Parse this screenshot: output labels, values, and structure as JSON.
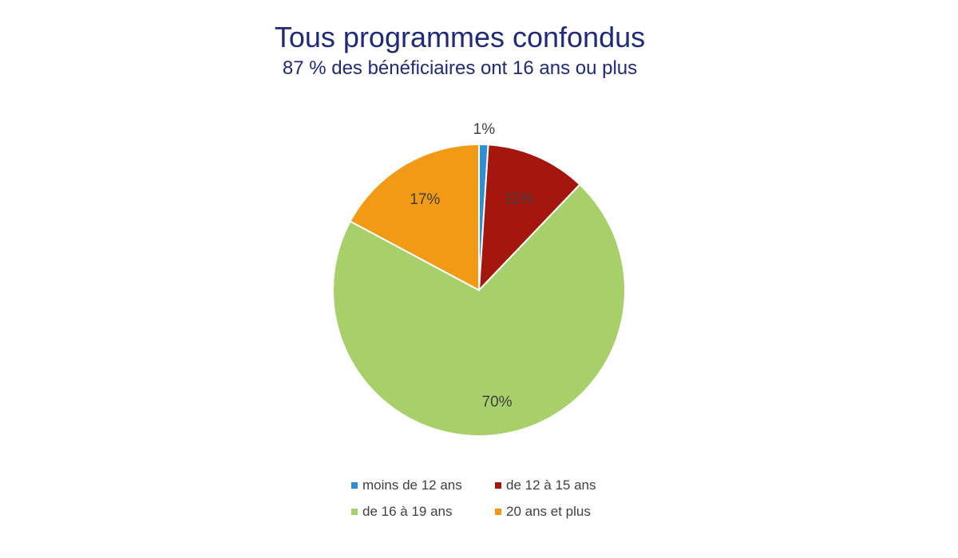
{
  "chart_data": {
    "type": "pie",
    "title": "Tous programmes confondus",
    "subtitle": "87 % des bénéficiaires ont 16 ans ou plus",
    "categories": [
      "moins de 12 ans",
      "de 12 à 15 ans",
      "de 16 à 19 ans",
      "20 ans et plus"
    ],
    "values": [
      1,
      11,
      70,
      17
    ],
    "labels": [
      "1%",
      "11%",
      "70%",
      "17%"
    ],
    "colors": [
      "#2e8fd4",
      "#a5160f",
      "#a8d06a",
      "#f29a16"
    ],
    "legend_position": "bottom"
  }
}
